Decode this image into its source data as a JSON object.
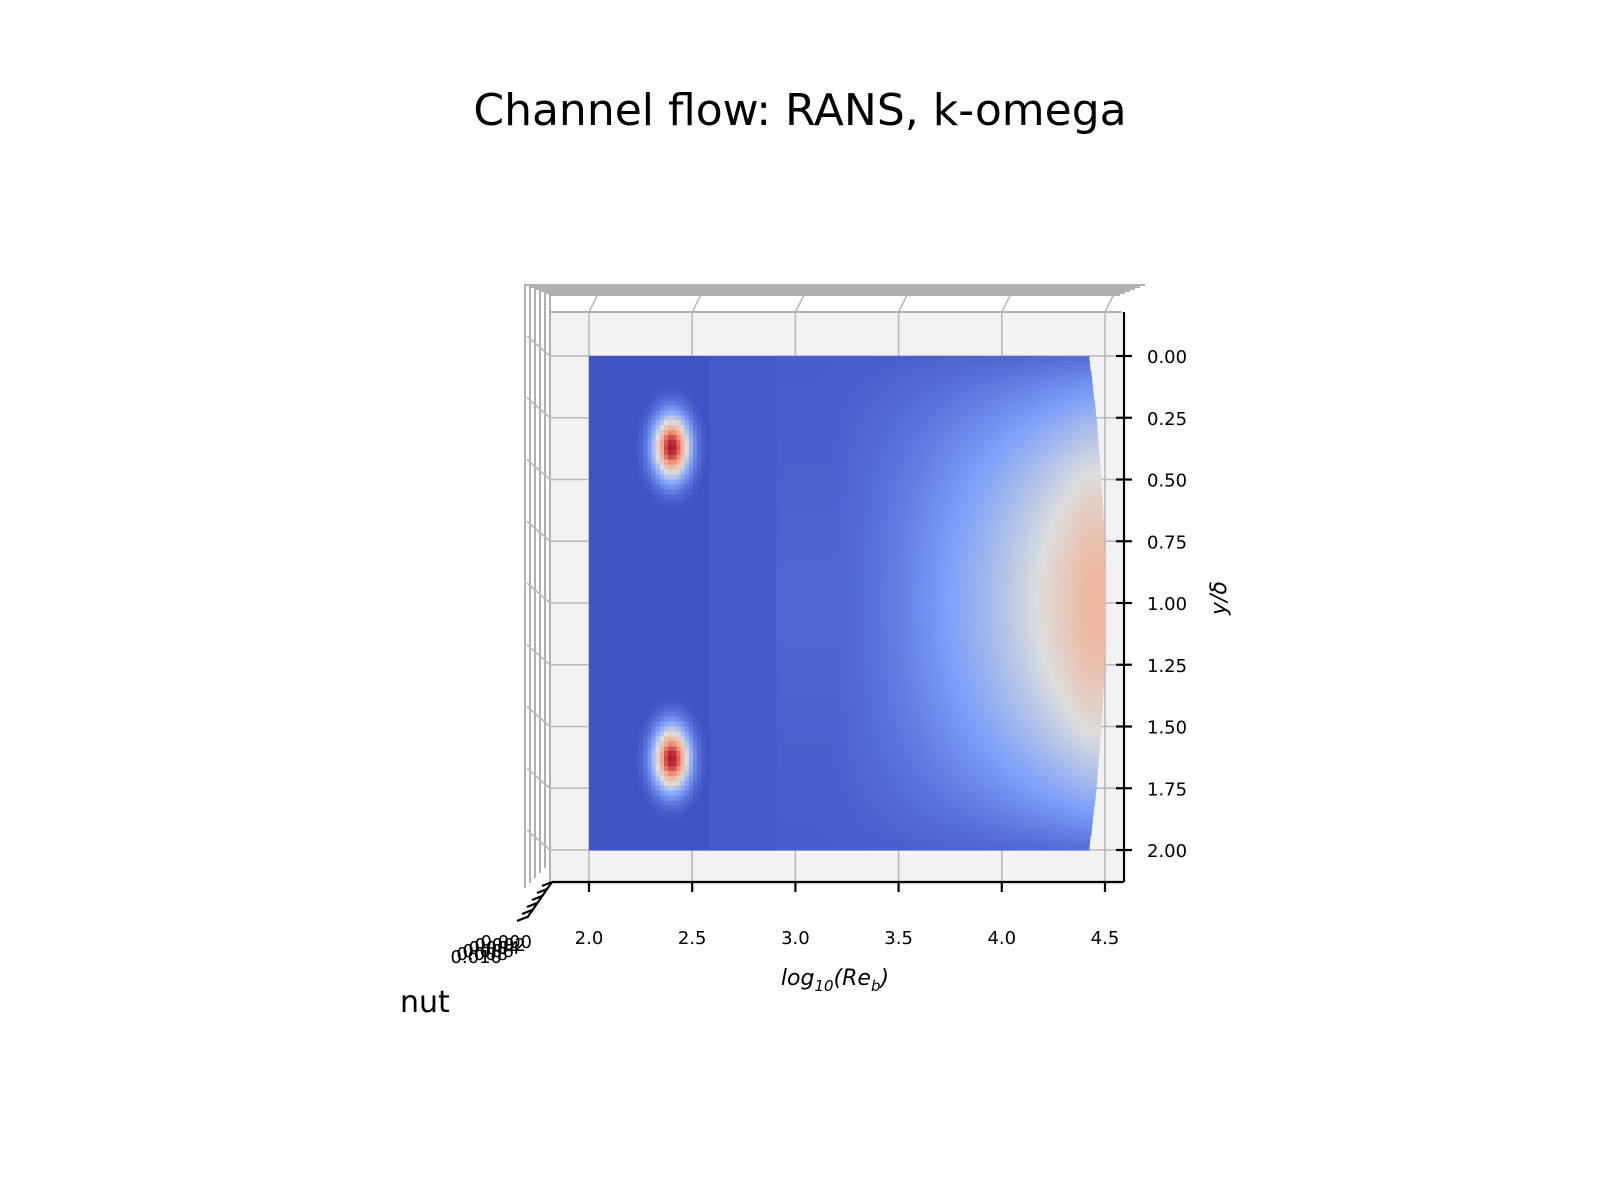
{
  "chart_data": {
    "type": "heatmap",
    "title": "Channel flow: RANS, k-omega",
    "xlabel_base": "log",
    "xlabel_sub": "10",
    "xlabel_arg": "Re",
    "xlabel_arg_sub": "b",
    "ylabel": "y/δ",
    "zlabel": "nut",
    "x_ticks": [
      "2.0",
      "2.5",
      "3.0",
      "3.5",
      "4.0",
      "4.5"
    ],
    "y_ticks": [
      "0.00",
      "0.25",
      "0.50",
      "0.75",
      "1.00",
      "1.25",
      "1.50",
      "1.75",
      "2.00"
    ],
    "z_ticks": [
      "0.000",
      "0.002",
      "0.004",
      "0.006",
      "0.008",
      "0.010"
    ],
    "xlim": [
      1.83,
      4.59
    ],
    "ylim": [
      2.15,
      -0.05
    ],
    "zlim": [
      0,
      0.011
    ],
    "colormap": "coolwarm",
    "colors": {
      "low": "#3b4cc0",
      "mid": "#dddddd",
      "high": "#b40426"
    },
    "x_data_range": [
      2.0,
      4.42
    ],
    "y_data_range": [
      0.0,
      2.0
    ],
    "features": [
      {
        "name": "lower-Re peak near wall",
        "x": 2.4,
        "y": 0.37,
        "nut_relative": 0.95
      },
      {
        "name": "lower-Re peak near wall",
        "x": 2.4,
        "y": 1.63,
        "nut_relative": 0.95
      },
      {
        "name": "high-Re centerline maximum",
        "x": 4.4,
        "y": 1.0,
        "nut_relative": 0.65
      }
    ]
  }
}
